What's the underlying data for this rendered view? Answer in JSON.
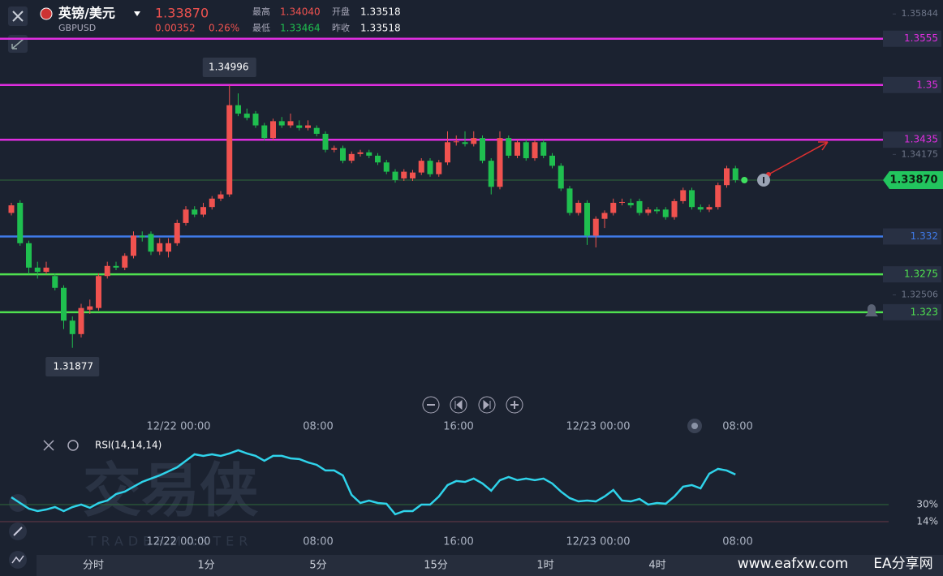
{
  "header": {
    "pair": "英镑/美元",
    "symbol": "GBPUSD",
    "price": "1.33870",
    "change": "0.00352",
    "change_pct": "0.26%",
    "high_label": "最高",
    "high": "1.34040",
    "low_label": "最低",
    "low": "1.33464",
    "open_label": "开盘",
    "open": "1.33518",
    "prev_label": "昨收",
    "prev": "1.33518"
  },
  "chart_data": {
    "type": "candlestick",
    "up_color": "#f0524f",
    "down_color": "#1fbf4f",
    "open": [
      1.3348,
      1.336,
      1.3312,
      1.3283,
      1.3278,
      1.3273,
      1.3259,
      1.322,
      1.3204,
      1.3233,
      1.3235,
      1.3273,
      1.3285,
      1.3283,
      1.3297,
      1.3321,
      1.3323,
      1.3302,
      1.3302,
      1.3312,
      1.3336,
      1.3352,
      1.3346,
      1.3355,
      1.3365,
      1.337,
      1.3476,
      1.3466,
      1.3466,
      1.3452,
      1.3437,
      1.3457,
      1.3452,
      1.3452,
      1.3449,
      1.3449,
      1.3442,
      1.3423,
      1.3425,
      1.341,
      1.3418,
      1.342,
      1.3416,
      1.3408,
      1.3397,
      1.3389,
      1.3389,
      1.3396,
      1.341,
      1.3394,
      1.3408,
      1.3432,
      1.3432,
      1.343,
      1.3437,
      1.341,
      1.3379,
      1.3437,
      1.3416,
      1.3432,
      1.3413,
      1.3432,
      1.3416,
      1.3404,
      1.3377,
      1.3348,
      1.336,
      1.3321,
      1.3341,
      1.3348,
      1.336,
      1.336,
      1.3362,
      1.3348,
      1.3352,
      1.3352,
      1.3343,
      1.3362,
      1.3375,
      1.3355,
      1.3352,
      1.3355,
      1.3381,
      1.3401
    ],
    "close": [
      1.3357,
      1.3312,
      1.3283,
      1.3278,
      1.3283,
      1.3259,
      1.322,
      1.3204,
      1.3235,
      1.3237,
      1.3273,
      1.3285,
      1.3283,
      1.3297,
      1.3321,
      1.3319,
      1.3302,
      1.3312,
      1.3312,
      1.3336,
      1.3352,
      1.3346,
      1.3355,
      1.3365,
      1.337,
      1.3476,
      1.3466,
      1.3461,
      1.3452,
      1.3437,
      1.3457,
      1.3452,
      1.3457,
      1.3449,
      1.3452,
      1.3442,
      1.3423,
      1.3425,
      1.341,
      1.3418,
      1.342,
      1.3416,
      1.3408,
      1.3397,
      1.3387,
      1.3397,
      1.3396,
      1.341,
      1.3394,
      1.3408,
      1.3432,
      1.3433,
      1.343,
      1.3437,
      1.341,
      1.3379,
      1.3437,
      1.3416,
      1.3432,
      1.3413,
      1.3432,
      1.3416,
      1.3404,
      1.3377,
      1.3348,
      1.336,
      1.3321,
      1.3341,
      1.3348,
      1.336,
      1.3361,
      1.3357,
      1.3348,
      1.3352,
      1.335,
      1.3343,
      1.3362,
      1.3375,
      1.3355,
      1.3352,
      1.3355,
      1.3381,
      1.3401,
      1.3387
    ],
    "high": [
      1.336,
      1.3363,
      1.3315,
      1.329,
      1.329,
      1.3276,
      1.3262,
      1.3225,
      1.324,
      1.3245,
      1.3276,
      1.329,
      1.329,
      1.33,
      1.3326,
      1.3326,
      1.3326,
      1.3318,
      1.3318,
      1.334,
      1.3356,
      1.3356,
      1.336,
      1.3368,
      1.3374,
      1.34996,
      1.349,
      1.3472,
      1.3469,
      1.3455,
      1.346,
      1.3462,
      1.3466,
      1.3458,
      1.3458,
      1.3452,
      1.3445,
      1.3428,
      1.3428,
      1.3421,
      1.3423,
      1.3423,
      1.3419,
      1.3411,
      1.34,
      1.34,
      1.3399,
      1.3413,
      1.3413,
      1.3411,
      1.3445,
      1.344,
      1.3445,
      1.3445,
      1.344,
      1.3413,
      1.3445,
      1.344,
      1.3435,
      1.3435,
      1.3435,
      1.3435,
      1.3419,
      1.3407,
      1.338,
      1.3363,
      1.3363,
      1.3344,
      1.3351,
      1.3365,
      1.3365,
      1.3365,
      1.3365,
      1.3355,
      1.3355,
      1.3355,
      1.3365,
      1.3378,
      1.3378,
      1.3358,
      1.3358,
      1.3384,
      1.3404,
      1.3404
    ],
    "low": [
      1.3345,
      1.3309,
      1.3275,
      1.327,
      1.3275,
      1.3256,
      1.321,
      1.31877,
      1.32,
      1.3228,
      1.3232,
      1.327,
      1.328,
      1.328,
      1.3294,
      1.3314,
      1.3298,
      1.3298,
      1.3295,
      1.3309,
      1.3333,
      1.3343,
      1.3343,
      1.3352,
      1.3362,
      1.3367,
      1.3463,
      1.3458,
      1.3449,
      1.3434,
      1.3434,
      1.3449,
      1.3449,
      1.3446,
      1.3446,
      1.3439,
      1.342,
      1.342,
      1.3407,
      1.3407,
      1.3415,
      1.3413,
      1.3405,
      1.3394,
      1.3384,
      1.3386,
      1.3386,
      1.3393,
      1.3391,
      1.3391,
      1.3405,
      1.3428,
      1.3427,
      1.3427,
      1.3407,
      1.337,
      1.3376,
      1.3413,
      1.3413,
      1.341,
      1.341,
      1.3413,
      1.3401,
      1.3374,
      1.3345,
      1.3345,
      1.331,
      1.3307,
      1.333,
      1.3345,
      1.3357,
      1.3354,
      1.3345,
      1.3345,
      1.3347,
      1.334,
      1.334,
      1.3359,
      1.3352,
      1.3349,
      1.3349,
      1.3352,
      1.3378,
      1.3384
    ],
    "ylim": [
      1.3119,
      1.3601
    ],
    "yticks": [
      1.35844,
      1.34175,
      1.32506
    ],
    "levels": [
      {
        "value": 1.3555,
        "color": "#e02ee0"
      },
      {
        "value": 1.35,
        "color": "#e02ee0"
      },
      {
        "value": 1.3435,
        "color": "#e02ee0"
      },
      {
        "value": 1.332,
        "color": "#3f7ae8"
      },
      {
        "value": 1.3275,
        "color": "#4fe04f"
      },
      {
        "value": 1.323,
        "color": "#4fe04f"
      }
    ],
    "last": {
      "value": 1.3387,
      "label": "1.33870"
    },
    "time_labels": [
      "12/22 00:00",
      "08:00",
      "16:00",
      "12/23 00:00",
      "08:00"
    ]
  },
  "rsi": {
    "type": "line",
    "title": "RSI(14,14,14)",
    "color": "#2fd3ea",
    "values": [
      36.9,
      31.5,
      26.2,
      23.9,
      25.4,
      27.7,
      23.9,
      27.7,
      30,
      27,
      31.5,
      33.8,
      39.9,
      42.2,
      46.8,
      51.3,
      54.4,
      57.4,
      61.2,
      65,
      71.1,
      77.2,
      75.7,
      77.2,
      75.7,
      78,
      81,
      78,
      75.7,
      71.1,
      75.7,
      75.7,
      73.4,
      72.7,
      69.6,
      67.3,
      62,
      62,
      57.4,
      39.1,
      31.5,
      33.8,
      31.5,
      30.8,
      20.9,
      23.9,
      23.9,
      30,
      30,
      37.6,
      48.3,
      52.1,
      51.3,
      54.4,
      49.8,
      43,
      52.9,
      55.9,
      52.9,
      54.4,
      52.9,
      54.4,
      49.8,
      42.2,
      36.1,
      33,
      33.8,
      33,
      37.6,
      43.7,
      33.8,
      33,
      35.3,
      30,
      31.5,
      30.8,
      37.6,
      46.8,
      48.3,
      45.2,
      59,
      63.5,
      62,
      58.2
    ],
    "ylim": [
      0,
      100
    ],
    "yticks": [
      {
        "value": 30,
        "label": "30%"
      },
      {
        "value": 14,
        "label": "14%"
      }
    ]
  },
  "watermark": {
    "logo": "交易侠",
    "sub": "TRADERMASTER",
    "site": "www.eafxw.com",
    "site_name": "EA分享网"
  },
  "tabs": [
    "分时",
    "1分",
    "5分",
    "15分",
    "1时",
    "4时"
  ]
}
